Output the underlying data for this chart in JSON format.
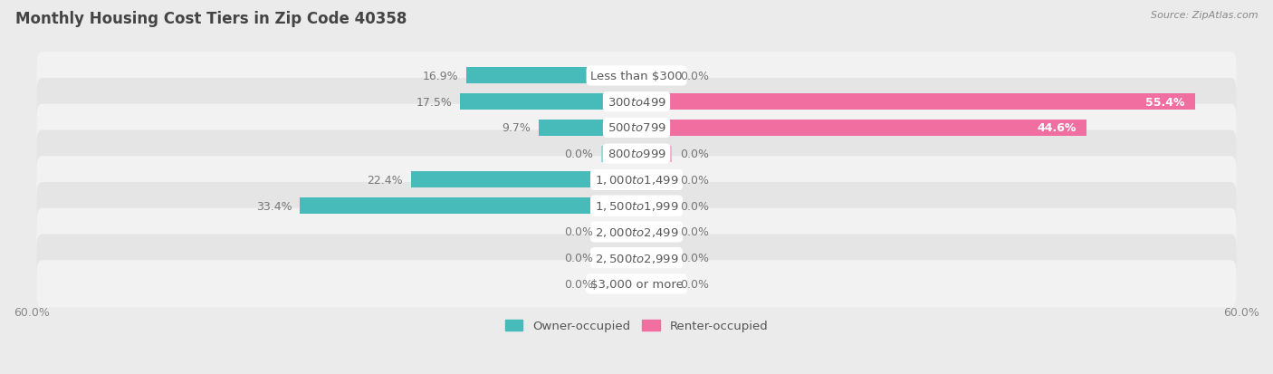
{
  "title": "Monthly Housing Cost Tiers in Zip Code 40358",
  "source": "Source: ZipAtlas.com",
  "categories": [
    "Less than $300",
    "$300 to $499",
    "$500 to $799",
    "$800 to $999",
    "$1,000 to $1,499",
    "$1,500 to $1,999",
    "$2,000 to $2,499",
    "$2,500 to $2,999",
    "$3,000 or more"
  ],
  "owner_values": [
    16.9,
    17.5,
    9.7,
    0.0,
    22.4,
    33.4,
    0.0,
    0.0,
    0.0
  ],
  "renter_values": [
    0.0,
    55.4,
    44.6,
    0.0,
    0.0,
    0.0,
    0.0,
    0.0,
    0.0
  ],
  "owner_color": "#47BABA",
  "renter_color": "#F06FA0",
  "owner_color_zero": "#9ED6D6",
  "renter_color_zero": "#F5AECA",
  "axis_limit": 60.0,
  "background_color": "#EBEBEB",
  "row_color_odd": "#F2F2F2",
  "row_color_even": "#E5E5E5",
  "title_fontsize": 12,
  "label_fontsize": 9.5,
  "value_fontsize": 9,
  "tick_fontsize": 9,
  "bar_height": 0.62,
  "min_bar_stub": 3.5,
  "legend_fontsize": 9.5,
  "label_text_color": "#666666",
  "value_inside_color": "#FFFFFF",
  "value_outside_color": "#777777",
  "label_box_color": "#FFFFFF",
  "label_text_dark": "#5A5A5A"
}
